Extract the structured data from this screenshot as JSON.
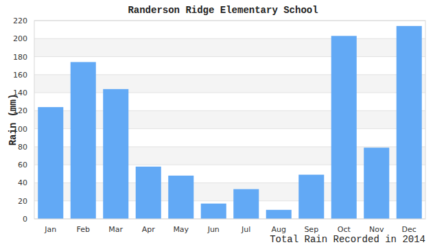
{
  "chart_data": {
    "type": "bar",
    "title": "Randerson Ridge Elementary School",
    "x_label": "Total Rain Recorded in 2014",
    "y_label": "Rain (mm)",
    "categories": [
      "Jan",
      "Feb",
      "Mar",
      "Apr",
      "May",
      "Jun",
      "Jul",
      "Aug",
      "Sep",
      "Oct",
      "Nov",
      "Dec"
    ],
    "values": [
      124,
      174,
      144,
      58,
      48,
      17,
      33,
      10,
      49,
      203,
      79,
      214
    ],
    "color": "#62a9f5",
    "ylim": [
      0,
      220
    ],
    "yticks": [
      0,
      20,
      40,
      60,
      80,
      100,
      120,
      140,
      160,
      180,
      200,
      220
    ],
    "grid": true
  }
}
